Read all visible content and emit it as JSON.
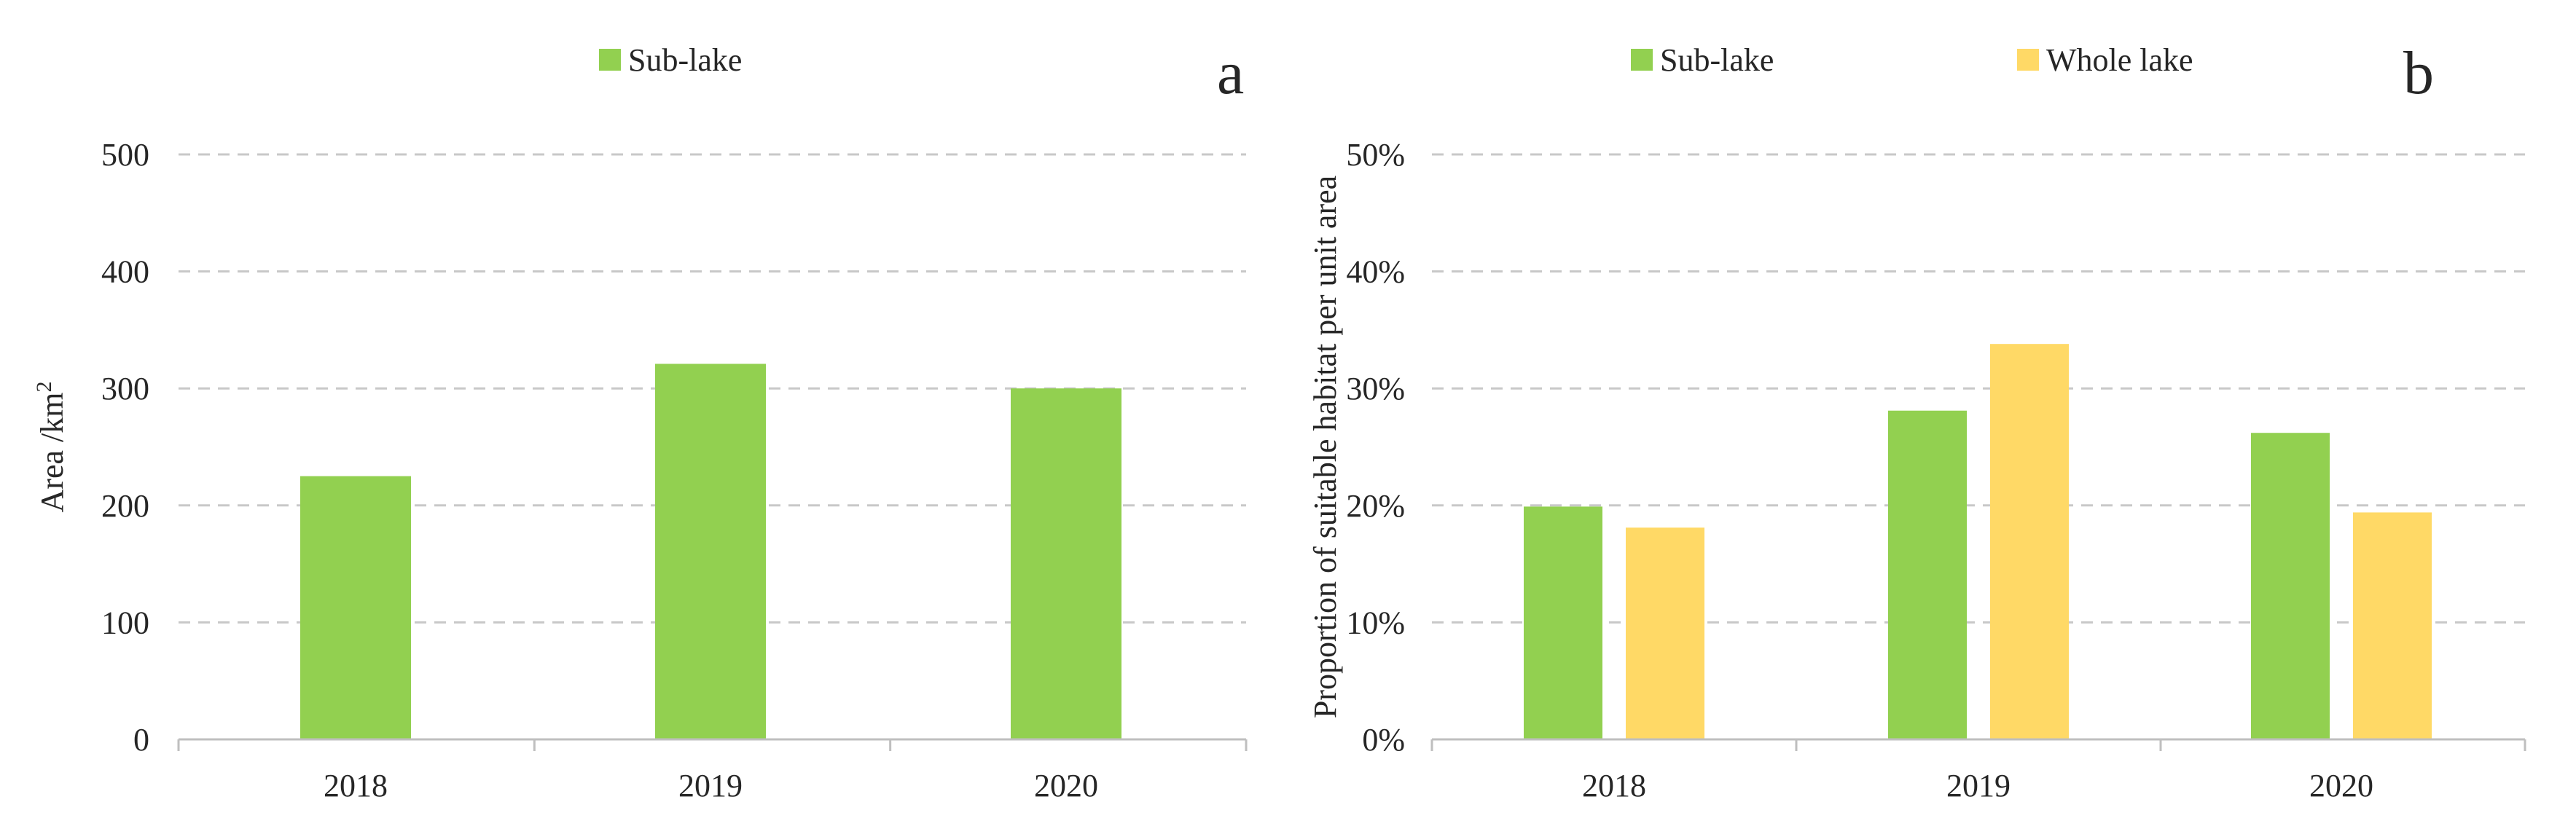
{
  "colors": {
    "sub_lake": "#92d050",
    "whole_lake": "#ffd966",
    "grid": "#c8c8c8",
    "axis": "#bfbfbf",
    "text": "#262626"
  },
  "chart_data": [
    {
      "type": "bar",
      "panel_label": "a",
      "categories": [
        "2018",
        "2019",
        "2020"
      ],
      "series": [
        {
          "name": "Sub-lake",
          "values": [
            225,
            321,
            300
          ]
        }
      ],
      "ylabel": "Area /km²",
      "ylim": [
        0,
        500
      ],
      "yticks": [
        0,
        100,
        200,
        300,
        400,
        500
      ],
      "ytick_labels": [
        "0",
        "100",
        "200",
        "300",
        "400",
        "500"
      ],
      "grid": true,
      "legend_position": "top-center"
    },
    {
      "type": "bar",
      "panel_label": "b",
      "categories": [
        "2018",
        "2019",
        "2020"
      ],
      "series": [
        {
          "name": "Sub-lake",
          "values": [
            0.199,
            0.281,
            0.262
          ]
        },
        {
          "name": "Whole lake",
          "values": [
            0.181,
            0.338,
            0.194
          ]
        }
      ],
      "ylabel": "Proportion of suitable habitat per unit area",
      "ylim": [
        0,
        0.5
      ],
      "yticks": [
        0,
        0.1,
        0.2,
        0.3,
        0.4,
        0.5
      ],
      "ytick_labels": [
        "0%",
        "10%",
        "20%",
        "30%",
        "40%",
        "50%"
      ],
      "grid": true,
      "legend_position": "top-center"
    }
  ]
}
